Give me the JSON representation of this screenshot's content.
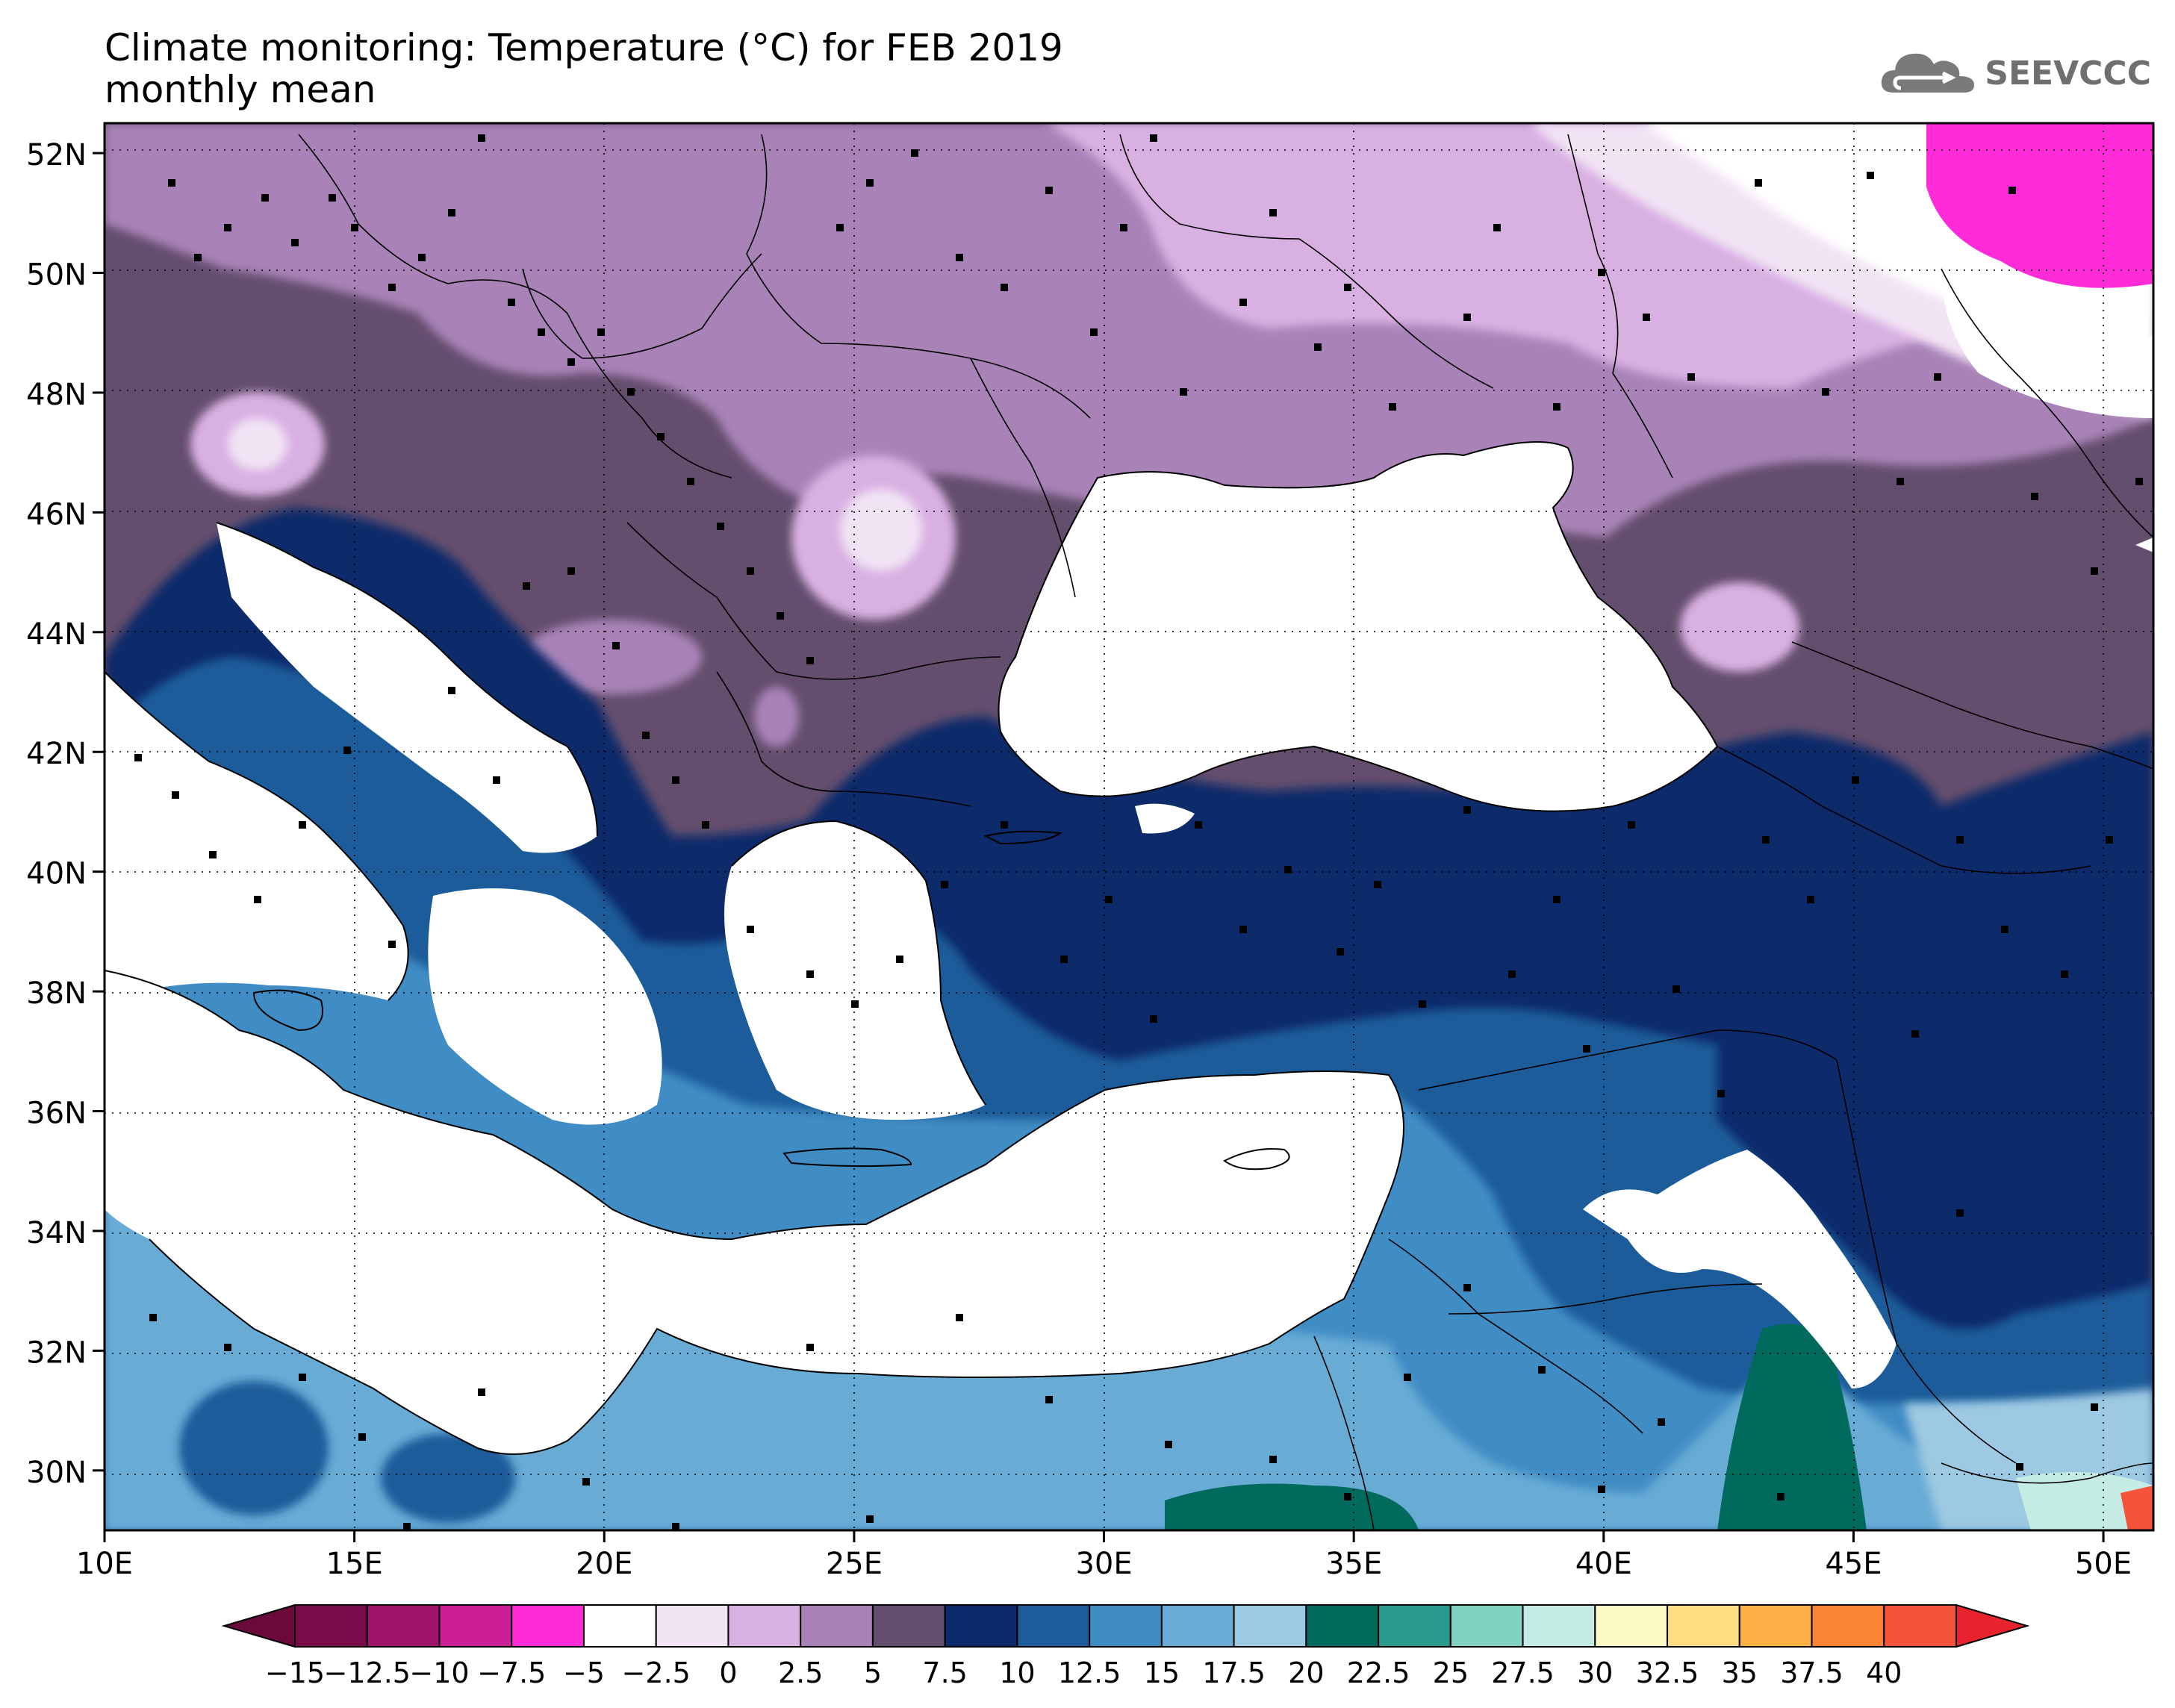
{
  "title_line1": "Climate monitoring: Temperature (°C) for FEB 2019",
  "title_line2": "monthly mean",
  "logo_text": "SEEVCCC",
  "map": {
    "lon_range": [
      10,
      51
    ],
    "lat_range": [
      29,
      52.5
    ],
    "lat_ticks": [
      {
        "lat": 52,
        "label": "52N"
      },
      {
        "lat": 50,
        "label": "50N"
      },
      {
        "lat": 48,
        "label": "48N"
      },
      {
        "lat": 46,
        "label": "46N"
      },
      {
        "lat": 44,
        "label": "44N"
      },
      {
        "lat": 42,
        "label": "42N"
      },
      {
        "lat": 40,
        "label": "40N"
      },
      {
        "lat": 38,
        "label": "38N"
      },
      {
        "lat": 36,
        "label": "36N"
      },
      {
        "lat": 34,
        "label": "34N"
      },
      {
        "lat": 32,
        "label": "32N"
      },
      {
        "lat": 30,
        "label": "30N"
      }
    ],
    "lon_ticks": [
      {
        "lon": 10,
        "label": "10E"
      },
      {
        "lon": 15,
        "label": "15E"
      },
      {
        "lon": 20,
        "label": "20E"
      },
      {
        "lon": 25,
        "label": "25E"
      },
      {
        "lon": 30,
        "label": "30E"
      },
      {
        "lon": 35,
        "label": "35E"
      },
      {
        "lon": 40,
        "label": "40E"
      },
      {
        "lon": 45,
        "label": "45E"
      },
      {
        "lon": 50,
        "label": "50E"
      }
    ]
  },
  "colorbar": {
    "labels": [
      "−15",
      "−12.5",
      "−10",
      "−7.5",
      "−5",
      "−2.5",
      "0",
      "2.5",
      "5",
      "7.5",
      "10",
      "12.5",
      "15",
      "17.5",
      "20",
      "22.5",
      "25",
      "27.5",
      "30",
      "32.5",
      "35",
      "37.5",
      "40"
    ],
    "colors": [
      "#7a0b4a",
      "#a0146d",
      "#cc1e96",
      "#ff2bd6",
      "#ffffff",
      "#f1e3f4",
      "#d9b0e2",
      "#a983b8",
      "#644e6d",
      "#0b2a6a",
      "#1d5c9a",
      "#3f8cc4",
      "#68acd6",
      "#9ec9e2",
      "#006a5c",
      "#2a9a8e",
      "#7fd1c2",
      "#c4ece4",
      "#fdf9c2",
      "#fedc80",
      "#fdb045",
      "#fb8434",
      "#f6543a"
    ],
    "low_arrow_color": "#6a0a3a",
    "high_arrow_color": "#e8232d"
  }
}
